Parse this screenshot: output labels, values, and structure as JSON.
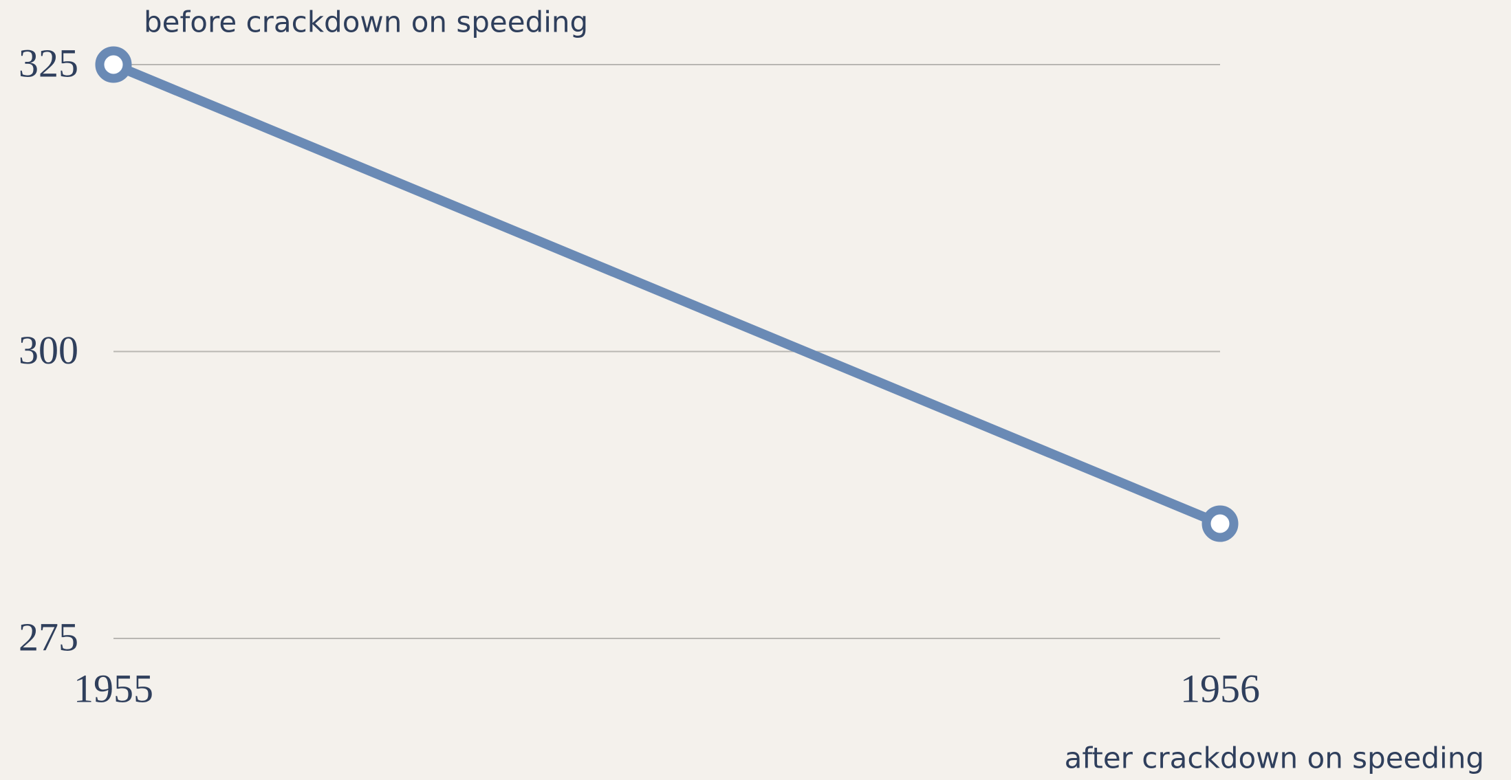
{
  "chart_data": {
    "type": "line",
    "categories": [
      "1955",
      "1956"
    ],
    "values": [
      325,
      285
    ],
    "color": "#6a8ab5",
    "ylim": [
      275,
      325
    ],
    "yticks": [
      275,
      300,
      325
    ],
    "grid": true,
    "annotations": [
      "before crackdown on speeding",
      "after crackdown on speeding"
    ]
  }
}
